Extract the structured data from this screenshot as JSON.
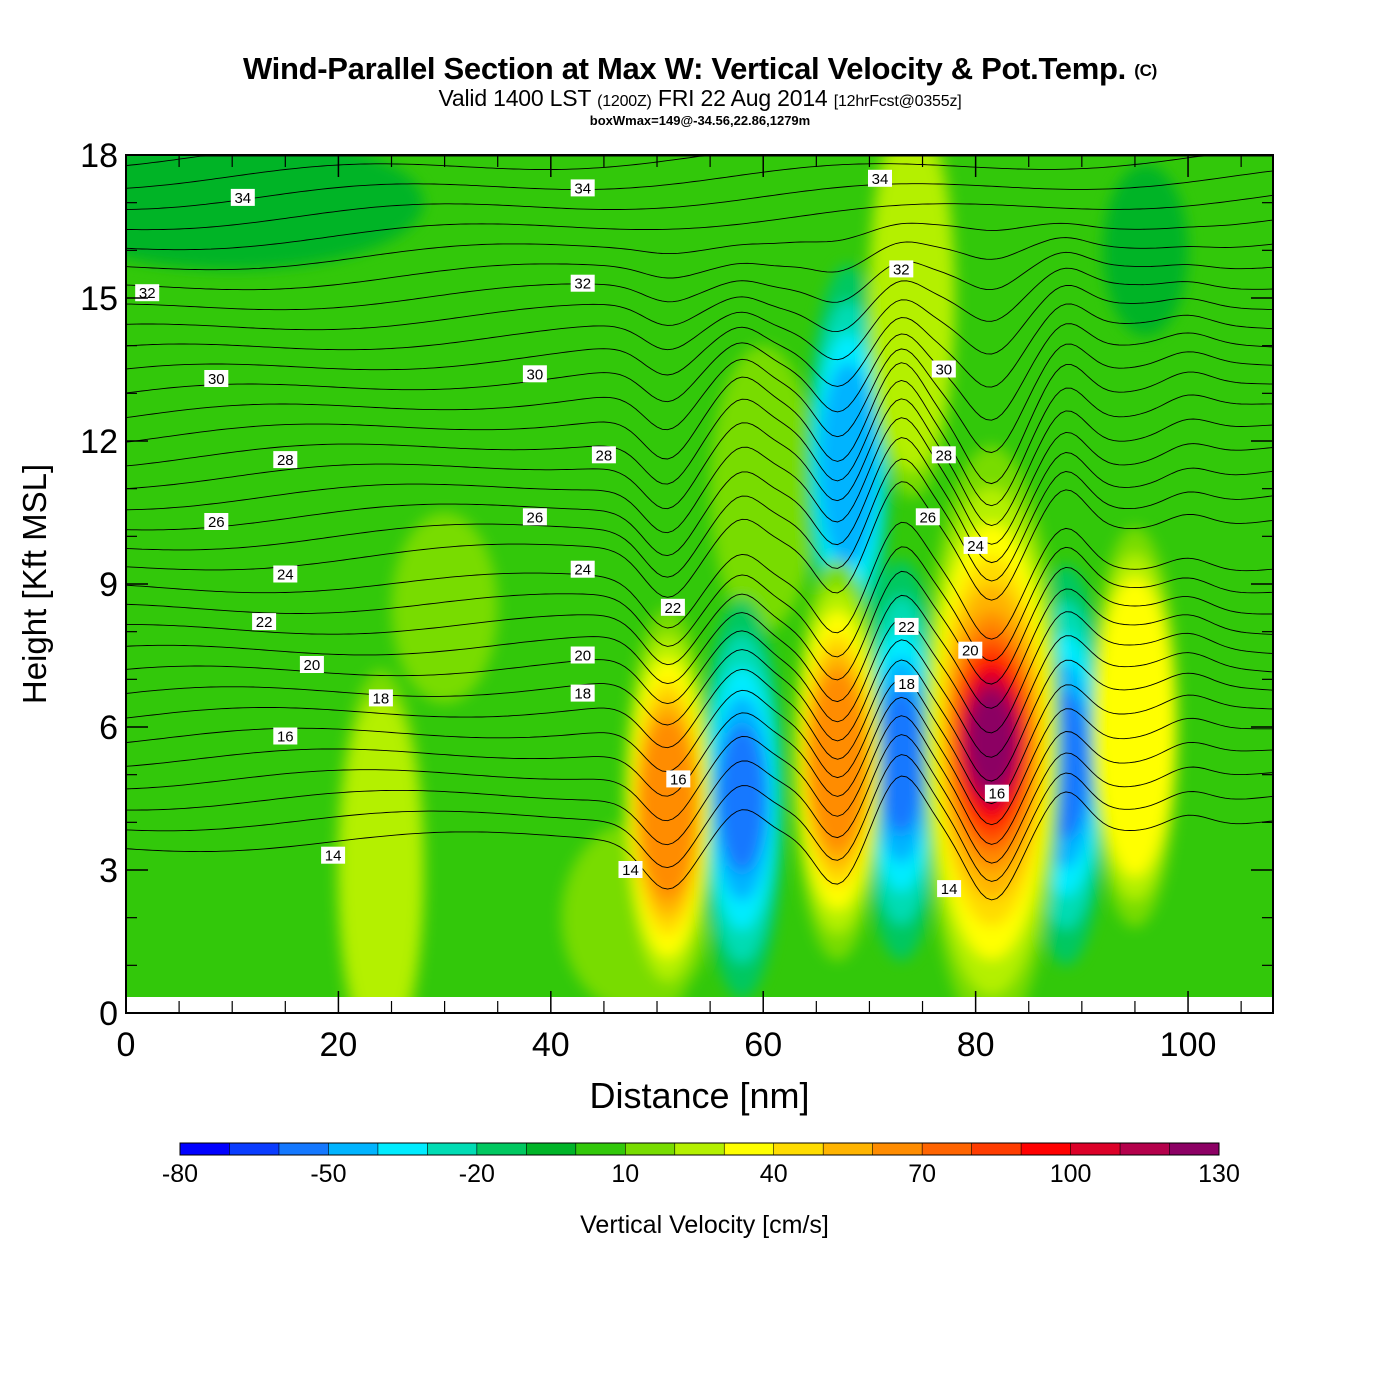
{
  "header": {
    "title": "Wind-Parallel Section at Max W: Vertical Velocity & Pot.Temp.",
    "copyright": "(C)",
    "valid_prefix": "Valid 1400 LST",
    "valid_utc": "(1200Z)",
    "valid_date": "FRI 22 Aug 2014",
    "forecast": "[12hrFcst@0355z]",
    "box_info": "boxWmax=149@-34.56,22.86,1279m"
  },
  "chart_data": {
    "type": "heatmap",
    "xlabel": "Distance [nm]",
    "ylabel": "Height [Kft MSL]",
    "xlim": [
      0,
      108
    ],
    "ylim": [
      0,
      18
    ],
    "x_ticks": [
      "0",
      "20",
      "40",
      "60",
      "80",
      "100"
    ],
    "y_ticks": [
      "0",
      "3",
      "6",
      "9",
      "12",
      "15",
      "18"
    ],
    "colorbar": {
      "label": "Vertical Velocity [cm/s]",
      "levels": [
        -80,
        -70,
        -60,
        -50,
        -40,
        -30,
        -20,
        -10,
        0,
        10,
        20,
        30,
        40,
        50,
        60,
        70,
        80,
        90,
        100,
        110,
        120,
        130,
        140
      ],
      "tick_labels": [
        "-80",
        "-50",
        "-20",
        "10",
        "40",
        "70",
        "100",
        "130"
      ],
      "colors": [
        "#0000ff",
        "#0a3cff",
        "#1478ff",
        "#00b4ff",
        "#00ecff",
        "#00dcb4",
        "#00c860",
        "#00b428",
        "#32c80a",
        "#78dc00",
        "#b4f000",
        "#ffff00",
        "#ffdc00",
        "#ffb400",
        "#ff8c00",
        "#ff6400",
        "#ff3c00",
        "#ff0000",
        "#dc0028",
        "#b4004b",
        "#8c0064"
      ]
    },
    "updraft_cores": [
      {
        "x": 51,
        "height": 4.3,
        "w": 60
      },
      {
        "x": 67,
        "height": 5.3,
        "w": 60
      },
      {
        "x": 81.5,
        "height": 5.7,
        "w": 149
      },
      {
        "x": 24,
        "height": 3.0,
        "w": 20
      },
      {
        "x": 95,
        "height": 6.0,
        "w": 30
      },
      {
        "x": 74,
        "height": 15.0,
        "w": 20
      }
    ],
    "downdraft_cores": [
      {
        "x": 58,
        "height": 4.5,
        "w": -50
      },
      {
        "x": 73,
        "height": 5.3,
        "w": -50
      },
      {
        "x": 88.5,
        "height": 5.2,
        "w": -50
      },
      {
        "x": 68,
        "height": 11.5,
        "w": -40
      }
    ],
    "theta_contours": {
      "levels": [
        14,
        16,
        18,
        20,
        22,
        24,
        26,
        28,
        30,
        32,
        34
      ],
      "labels": [
        {
          "text": "34",
          "x": 11,
          "y": 17.1
        },
        {
          "text": "34",
          "x": 43,
          "y": 17.3
        },
        {
          "text": "34",
          "x": 71,
          "y": 17.5
        },
        {
          "text": "32",
          "x": 2,
          "y": 15.1
        },
        {
          "text": "32",
          "x": 43,
          "y": 15.3
        },
        {
          "text": "32",
          "x": 73,
          "y": 15.6
        },
        {
          "text": "30",
          "x": 8.5,
          "y": 13.3
        },
        {
          "text": "30",
          "x": 38.5,
          "y": 13.4
        },
        {
          "text": "30",
          "x": 77,
          "y": 13.5
        },
        {
          "text": "28",
          "x": 15,
          "y": 11.6
        },
        {
          "text": "28",
          "x": 45,
          "y": 11.7
        },
        {
          "text": "28",
          "x": 77,
          "y": 11.7
        },
        {
          "text": "26",
          "x": 8.5,
          "y": 10.3
        },
        {
          "text": "26",
          "x": 38.5,
          "y": 10.4
        },
        {
          "text": "26",
          "x": 75.5,
          "y": 10.4
        },
        {
          "text": "24",
          "x": 15,
          "y": 9.2
        },
        {
          "text": "24",
          "x": 43,
          "y": 9.3
        },
        {
          "text": "24",
          "x": 80,
          "y": 9.8
        },
        {
          "text": "22",
          "x": 13,
          "y": 8.2
        },
        {
          "text": "22",
          "x": 51.5,
          "y": 8.5
        },
        {
          "text": "22",
          "x": 73.5,
          "y": 8.1
        },
        {
          "text": "20",
          "x": 17.5,
          "y": 7.3
        },
        {
          "text": "20",
          "x": 43,
          "y": 7.5
        },
        {
          "text": "20",
          "x": 79.5,
          "y": 7.6
        },
        {
          "text": "18",
          "x": 24,
          "y": 6.6
        },
        {
          "text": "18",
          "x": 43,
          "y": 6.7
        },
        {
          "text": "18",
          "x": 73.5,
          "y": 6.9
        },
        {
          "text": "16",
          "x": 15,
          "y": 5.8
        },
        {
          "text": "16",
          "x": 52,
          "y": 4.9
        },
        {
          "text": "16",
          "x": 82,
          "y": 4.6
        },
        {
          "text": "14",
          "x": 19.5,
          "y": 3.3
        },
        {
          "text": "14",
          "x": 47.5,
          "y": 3.0
        },
        {
          "text": "14",
          "x": 77.5,
          "y": 2.6
        }
      ]
    }
  }
}
